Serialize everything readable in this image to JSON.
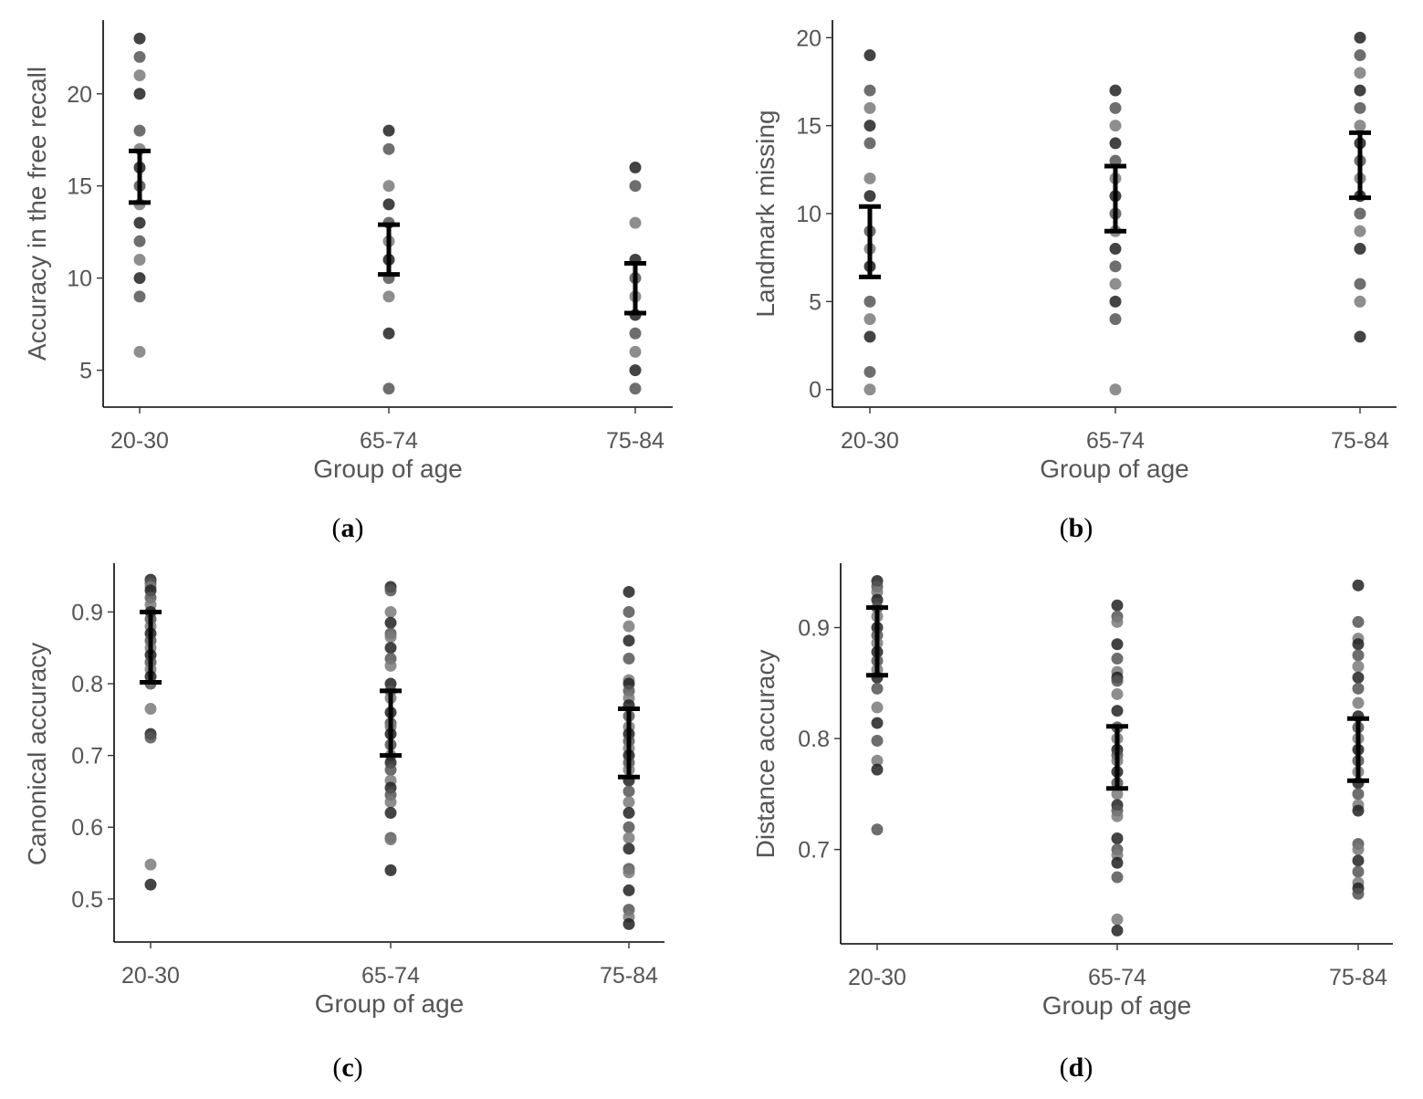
{
  "figure_labels": {
    "a": "a",
    "b": "b",
    "c": "c",
    "d": "d"
  },
  "chart_data": [
    {
      "type": "scatter",
      "panel": "a",
      "xlabel": "Group of age",
      "ylabel": "Accuracy in the free recall",
      "categories": [
        "20-30",
        "65-74",
        "75-84"
      ],
      "ylim": [
        3,
        24
      ],
      "yticks": [
        5,
        10,
        15,
        20
      ],
      "ytick_labels": [
        "5",
        "10",
        "15",
        "20"
      ],
      "points": [
        {
          "group": "20-30",
          "values": [
            23,
            22,
            21,
            20,
            18,
            17,
            16,
            15,
            14,
            13,
            12,
            11,
            10,
            9,
            6
          ]
        },
        {
          "group": "65-74",
          "values": [
            18,
            17,
            15,
            14,
            13,
            12,
            11,
            10,
            9,
            7,
            4
          ]
        },
        {
          "group": "75-84",
          "values": [
            16,
            15,
            13,
            11,
            10,
            9,
            8,
            7,
            6,
            5,
            4
          ]
        }
      ],
      "error_bars": [
        {
          "group": "20-30",
          "mean": 15.5,
          "low": 14.1,
          "high": 16.9
        },
        {
          "group": "65-74",
          "mean": 11.6,
          "low": 10.2,
          "high": 12.9
        },
        {
          "group": "75-84",
          "mean": 9.4,
          "low": 8.1,
          "high": 10.8
        }
      ]
    },
    {
      "type": "scatter",
      "panel": "b",
      "xlabel": "Group of age",
      "ylabel": "Landmark missing",
      "categories": [
        "20-30",
        "65-74",
        "75-84"
      ],
      "ylim": [
        -1,
        21
      ],
      "yticks": [
        0,
        5,
        10,
        15,
        20
      ],
      "ytick_labels": [
        "0",
        "5",
        "10",
        "15",
        "20"
      ],
      "points": [
        {
          "group": "20-30",
          "values": [
            19,
            17,
            16,
            15,
            14,
            12,
            11,
            9,
            8,
            7,
            5,
            4,
            3,
            1,
            0
          ]
        },
        {
          "group": "65-74",
          "values": [
            17,
            16,
            15,
            14,
            13,
            12,
            11,
            10,
            9,
            8,
            7,
            6,
            5,
            4,
            0
          ]
        },
        {
          "group": "75-84",
          "values": [
            20,
            19,
            18,
            17,
            16,
            15,
            14,
            13,
            12,
            11,
            10,
            9,
            8,
            6,
            5,
            3
          ]
        }
      ],
      "error_bars": [
        {
          "group": "20-30",
          "mean": 8.4,
          "low": 6.4,
          "high": 10.4
        },
        {
          "group": "65-74",
          "mean": 10.8,
          "low": 9.0,
          "high": 12.7
        },
        {
          "group": "75-84",
          "mean": 12.8,
          "low": 10.9,
          "high": 14.6
        }
      ]
    },
    {
      "type": "scatter",
      "panel": "c",
      "xlabel": "Group of age",
      "ylabel": "Canonical accuracy",
      "categories": [
        "20-30",
        "65-74",
        "75-84"
      ],
      "ylim": [
        0.44,
        0.968
      ],
      "yticks": [
        0.5,
        0.6,
        0.7,
        0.8,
        0.9
      ],
      "ytick_labels": [
        "0.5",
        "0.6",
        "0.7",
        "0.8",
        "0.9"
      ],
      "points": [
        {
          "group": "20-30",
          "values": [
            0.945,
            0.94,
            0.935,
            0.93,
            0.92,
            0.91,
            0.9,
            0.89,
            0.88,
            0.87,
            0.86,
            0.85,
            0.84,
            0.83,
            0.82,
            0.81,
            0.8,
            0.765,
            0.73,
            0.725,
            0.548,
            0.52
          ]
        },
        {
          "group": "65-74",
          "values": [
            0.935,
            0.93,
            0.9,
            0.885,
            0.87,
            0.865,
            0.85,
            0.835,
            0.825,
            0.8,
            0.79,
            0.78,
            0.76,
            0.745,
            0.74,
            0.73,
            0.715,
            0.7,
            0.69,
            0.68,
            0.665,
            0.655,
            0.645,
            0.635,
            0.62,
            0.585,
            0.583,
            0.54
          ]
        },
        {
          "group": "75-84",
          "values": [
            0.928,
            0.9,
            0.88,
            0.86,
            0.835,
            0.805,
            0.8,
            0.79,
            0.78,
            0.77,
            0.755,
            0.74,
            0.73,
            0.72,
            0.71,
            0.7,
            0.69,
            0.68,
            0.665,
            0.65,
            0.635,
            0.62,
            0.6,
            0.585,
            0.57,
            0.542,
            0.537,
            0.512,
            0.485,
            0.475,
            0.465
          ]
        }
      ],
      "error_bars": [
        {
          "group": "20-30",
          "mean": 0.852,
          "low": 0.802,
          "high": 0.9
        },
        {
          "group": "65-74",
          "mean": 0.745,
          "low": 0.7,
          "high": 0.79
        },
        {
          "group": "75-84",
          "mean": 0.717,
          "low": 0.67,
          "high": 0.765
        }
      ]
    },
    {
      "type": "scatter",
      "panel": "d",
      "xlabel": "Group of age",
      "ylabel": "Distance accuracy",
      "categories": [
        "20-30",
        "65-74",
        "75-84"
      ],
      "ylim": [
        0.615,
        0.958
      ],
      "yticks": [
        0.7,
        0.8,
        0.9
      ],
      "ytick_labels": [
        "0.7",
        "0.8",
        "0.9"
      ],
      "points": [
        {
          "group": "20-30",
          "values": [
            0.942,
            0.937,
            0.932,
            0.925,
            0.918,
            0.91,
            0.9,
            0.893,
            0.886,
            0.878,
            0.87,
            0.862,
            0.855,
            0.845,
            0.828,
            0.814,
            0.798,
            0.78,
            0.772,
            0.718
          ]
        },
        {
          "group": "65-74",
          "values": [
            0.92,
            0.91,
            0.905,
            0.885,
            0.872,
            0.86,
            0.855,
            0.852,
            0.84,
            0.825,
            0.81,
            0.8,
            0.79,
            0.785,
            0.78,
            0.77,
            0.76,
            0.75,
            0.74,
            0.735,
            0.73,
            0.71,
            0.7,
            0.695,
            0.688,
            0.675,
            0.637,
            0.627
          ]
        },
        {
          "group": "75-84",
          "values": [
            0.938,
            0.905,
            0.89,
            0.885,
            0.875,
            0.865,
            0.855,
            0.845,
            0.832,
            0.82,
            0.81,
            0.8,
            0.79,
            0.78,
            0.77,
            0.76,
            0.75,
            0.74,
            0.735,
            0.705,
            0.7,
            0.69,
            0.68,
            0.67,
            0.665,
            0.66
          ]
        }
      ],
      "error_bars": [
        {
          "group": "20-30",
          "mean": 0.888,
          "low": 0.857,
          "high": 0.918
        },
        {
          "group": "65-74",
          "mean": 0.783,
          "low": 0.755,
          "high": 0.811
        },
        {
          "group": "75-84",
          "mean": 0.79,
          "low": 0.762,
          "high": 0.818
        }
      ]
    }
  ]
}
